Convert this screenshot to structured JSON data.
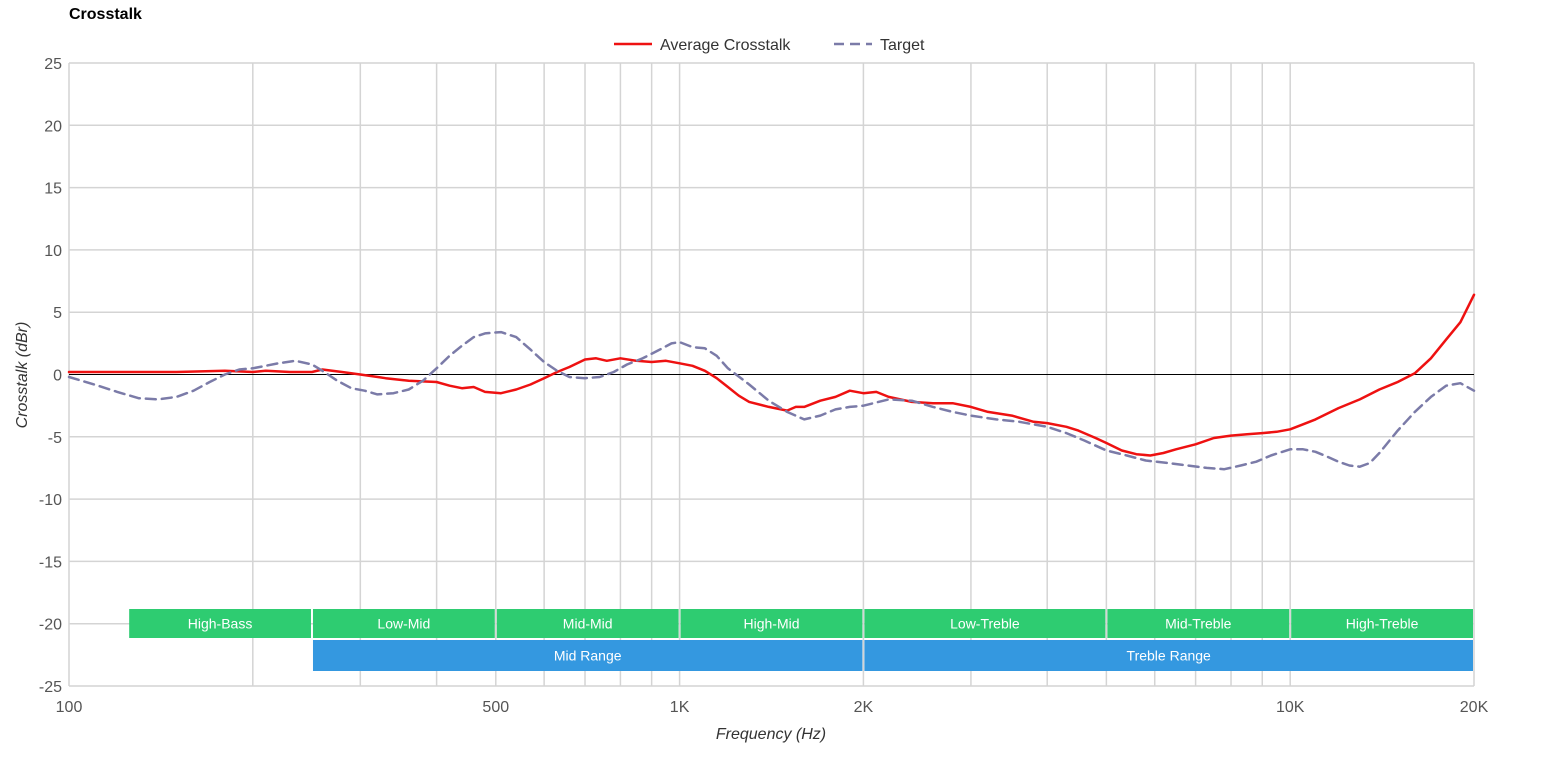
{
  "chart_title": "Crosstalk",
  "chart_data": {
    "type": "line",
    "title": "Crosstalk",
    "xlabel": "Frequency (Hz)",
    "ylabel": "Crosstalk (dBr)",
    "x_scale": "log",
    "xlim": [
      100,
      20000
    ],
    "ylim": [
      -25,
      25
    ],
    "x_ticks": [
      {
        "value": 100,
        "label": "100"
      },
      {
        "value": 500,
        "label": "500"
      },
      {
        "value": 1000,
        "label": "1K"
      },
      {
        "value": 2000,
        "label": "2K"
      },
      {
        "value": 10000,
        "label": "10K"
      },
      {
        "value": 20000,
        "label": "20K"
      }
    ],
    "x_gridlines": [
      100,
      200,
      300,
      400,
      500,
      600,
      700,
      800,
      900,
      1000,
      2000,
      3000,
      4000,
      5000,
      6000,
      7000,
      8000,
      9000,
      10000,
      20000
    ],
    "y_ticks": [
      25,
      20,
      15,
      10,
      5,
      0,
      -5,
      -10,
      -15,
      -20,
      -25
    ],
    "grid": true,
    "zero_line": true,
    "legend_position": "top-center",
    "series": [
      {
        "name": "Average Crosstalk",
        "color": "#ee1111",
        "style": "solid",
        "points": [
          [
            100,
            0.2
          ],
          [
            120,
            0.2
          ],
          [
            150,
            0.2
          ],
          [
            180,
            0.3
          ],
          [
            200,
            0.2
          ],
          [
            210,
            0.3
          ],
          [
            230,
            0.2
          ],
          [
            250,
            0.2
          ],
          [
            260,
            0.4
          ],
          [
            280,
            0.2
          ],
          [
            300,
            0.0
          ],
          [
            330,
            -0.3
          ],
          [
            360,
            -0.5
          ],
          [
            400,
            -0.6
          ],
          [
            420,
            -0.9
          ],
          [
            440,
            -1.1
          ],
          [
            460,
            -1.0
          ],
          [
            480,
            -1.4
          ],
          [
            510,
            -1.5
          ],
          [
            540,
            -1.2
          ],
          [
            570,
            -0.8
          ],
          [
            600,
            -0.3
          ],
          [
            630,
            0.2
          ],
          [
            660,
            0.6
          ],
          [
            700,
            1.2
          ],
          [
            730,
            1.3
          ],
          [
            760,
            1.1
          ],
          [
            800,
            1.3
          ],
          [
            850,
            1.1
          ],
          [
            900,
            1.0
          ],
          [
            950,
            1.1
          ],
          [
            1000,
            0.9
          ],
          [
            1050,
            0.7
          ],
          [
            1100,
            0.3
          ],
          [
            1150,
            -0.3
          ],
          [
            1200,
            -1.0
          ],
          [
            1250,
            -1.7
          ],
          [
            1300,
            -2.2
          ],
          [
            1400,
            -2.6
          ],
          [
            1500,
            -2.9
          ],
          [
            1550,
            -2.6
          ],
          [
            1600,
            -2.6
          ],
          [
            1700,
            -2.1
          ],
          [
            1800,
            -1.8
          ],
          [
            1900,
            -1.3
          ],
          [
            2000,
            -1.5
          ],
          [
            2100,
            -1.4
          ],
          [
            2200,
            -1.8
          ],
          [
            2400,
            -2.2
          ],
          [
            2600,
            -2.3
          ],
          [
            2800,
            -2.3
          ],
          [
            3000,
            -2.6
          ],
          [
            3200,
            -3.0
          ],
          [
            3500,
            -3.3
          ],
          [
            3800,
            -3.8
          ],
          [
            4000,
            -3.9
          ],
          [
            4300,
            -4.2
          ],
          [
            4500,
            -4.5
          ],
          [
            4800,
            -5.1
          ],
          [
            5000,
            -5.5
          ],
          [
            5300,
            -6.1
          ],
          [
            5600,
            -6.4
          ],
          [
            5900,
            -6.5
          ],
          [
            6200,
            -6.3
          ],
          [
            6500,
            -6.0
          ],
          [
            7000,
            -5.6
          ],
          [
            7500,
            -5.1
          ],
          [
            8000,
            -4.9
          ],
          [
            8500,
            -4.8
          ],
          [
            9000,
            -4.7
          ],
          [
            9500,
            -4.6
          ],
          [
            10000,
            -4.4
          ],
          [
            10500,
            -4.0
          ],
          [
            11000,
            -3.6
          ],
          [
            12000,
            -2.7
          ],
          [
            13000,
            -2.0
          ],
          [
            14000,
            -1.2
          ],
          [
            15000,
            -0.6
          ],
          [
            16000,
            0.1
          ],
          [
            17000,
            1.3
          ],
          [
            18000,
            2.8
          ],
          [
            19000,
            4.2
          ],
          [
            20000,
            6.4
          ]
        ]
      },
      {
        "name": "Target",
        "color": "#7b7ba8",
        "style": "dashed",
        "points": [
          [
            100,
            -0.2
          ],
          [
            110,
            -0.8
          ],
          [
            120,
            -1.4
          ],
          [
            130,
            -1.9
          ],
          [
            140,
            -2.0
          ],
          [
            150,
            -1.8
          ],
          [
            160,
            -1.3
          ],
          [
            170,
            -0.6
          ],
          [
            180,
            0.0
          ],
          [
            190,
            0.4
          ],
          [
            200,
            0.5
          ],
          [
            210,
            0.7
          ],
          [
            220,
            0.9
          ],
          [
            235,
            1.1
          ],
          [
            250,
            0.8
          ],
          [
            260,
            0.3
          ],
          [
            275,
            -0.5
          ],
          [
            290,
            -1.1
          ],
          [
            305,
            -1.3
          ],
          [
            320,
            -1.6
          ],
          [
            340,
            -1.5
          ],
          [
            360,
            -1.2
          ],
          [
            380,
            -0.5
          ],
          [
            400,
            0.5
          ],
          [
            420,
            1.5
          ],
          [
            440,
            2.3
          ],
          [
            460,
            3.0
          ],
          [
            480,
            3.3
          ],
          [
            510,
            3.4
          ],
          [
            540,
            3.0
          ],
          [
            570,
            2.0
          ],
          [
            600,
            1.0
          ],
          [
            630,
            0.3
          ],
          [
            660,
            -0.2
          ],
          [
            700,
            -0.3
          ],
          [
            740,
            -0.2
          ],
          [
            780,
            0.2
          ],
          [
            820,
            0.8
          ],
          [
            870,
            1.3
          ],
          [
            920,
            1.9
          ],
          [
            970,
            2.5
          ],
          [
            1000,
            2.6
          ],
          [
            1050,
            2.2
          ],
          [
            1100,
            2.1
          ],
          [
            1150,
            1.5
          ],
          [
            1200,
            0.5
          ],
          [
            1300,
            -0.8
          ],
          [
            1400,
            -2.1
          ],
          [
            1500,
            -3.0
          ],
          [
            1600,
            -3.6
          ],
          [
            1700,
            -3.3
          ],
          [
            1800,
            -2.8
          ],
          [
            1900,
            -2.6
          ],
          [
            2000,
            -2.5
          ],
          [
            2200,
            -2.0
          ],
          [
            2400,
            -2.1
          ],
          [
            2600,
            -2.6
          ],
          [
            2800,
            -3.0
          ],
          [
            3000,
            -3.3
          ],
          [
            3300,
            -3.6
          ],
          [
            3600,
            -3.8
          ],
          [
            4000,
            -4.2
          ],
          [
            4300,
            -4.7
          ],
          [
            4600,
            -5.3
          ],
          [
            5000,
            -6.1
          ],
          [
            5400,
            -6.5
          ],
          [
            5800,
            -6.9
          ],
          [
            6300,
            -7.1
          ],
          [
            6800,
            -7.3
          ],
          [
            7300,
            -7.5
          ],
          [
            7800,
            -7.6
          ],
          [
            8300,
            -7.3
          ],
          [
            8800,
            -7.0
          ],
          [
            9300,
            -6.5
          ],
          [
            10000,
            -6.0
          ],
          [
            10500,
            -6.0
          ],
          [
            11000,
            -6.2
          ],
          [
            11500,
            -6.6
          ],
          [
            12000,
            -7.0
          ],
          [
            12500,
            -7.3
          ],
          [
            13000,
            -7.4
          ],
          [
            13500,
            -7.1
          ],
          [
            14000,
            -6.3
          ],
          [
            15000,
            -4.5
          ],
          [
            16000,
            -3.0
          ],
          [
            17000,
            -1.8
          ],
          [
            18000,
            -0.9
          ],
          [
            19000,
            -0.7
          ],
          [
            20000,
            -1.3
          ]
        ]
      }
    ],
    "range_bands": {
      "row1": [
        {
          "label": "High-Bass",
          "from": 125,
          "to": 250
        },
        {
          "label": "Low-Mid",
          "from": 250,
          "to": 500
        },
        {
          "label": "Mid-Mid",
          "from": 500,
          "to": 1000
        },
        {
          "label": "High-Mid",
          "from": 1000,
          "to": 2000
        },
        {
          "label": "Low-Treble",
          "from": 2000,
          "to": 5000
        },
        {
          "label": "Mid-Treble",
          "from": 5000,
          "to": 10000
        },
        {
          "label": "High-Treble",
          "from": 10000,
          "to": 20000
        }
      ],
      "row2": [
        {
          "label": "Mid Range",
          "from": 250,
          "to": 2000
        },
        {
          "label": "Treble Range",
          "from": 2000,
          "to": 20000
        }
      ],
      "row1_color": "#2ecc71",
      "row2_color": "#3498e0"
    }
  }
}
